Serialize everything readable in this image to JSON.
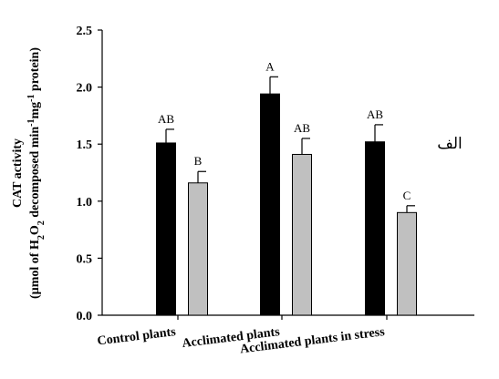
{
  "chart_data": {
    "type": "bar",
    "categories": [
      "Control plants",
      "Acclimated plants",
      "Acclimated plants in stress"
    ],
    "series": [
      {
        "color": "#000000",
        "values": [
          1.51,
          1.94,
          1.52
        ],
        "errors": [
          0.12,
          0.15,
          0.15
        ],
        "letters": [
          "AB",
          "A",
          "AB"
        ]
      },
      {
        "color": "#c0c0c0",
        "values": [
          1.16,
          1.41,
          0.9
        ],
        "errors": [
          0.1,
          0.14,
          0.06
        ],
        "letters": [
          "B",
          "AB",
          "C"
        ]
      }
    ],
    "yticks": [
      "0.0",
      "0.5",
      "1.0",
      "1.5",
      "2.0",
      "2.5"
    ],
    "ylim": [
      0,
      2.5
    ],
    "ylabel": {
      "line1": "CAT activity",
      "line2_prefix": "(µmol of H",
      "sub1": "2",
      "mid1": "O",
      "sub2": "2",
      "mid2": " decomposed min",
      "sup1": "-1",
      "mid3": "mg",
      "sup2": "-1",
      "suffix": " protein)"
    },
    "grid": false,
    "legend": "none"
  },
  "panel_label": "الف"
}
